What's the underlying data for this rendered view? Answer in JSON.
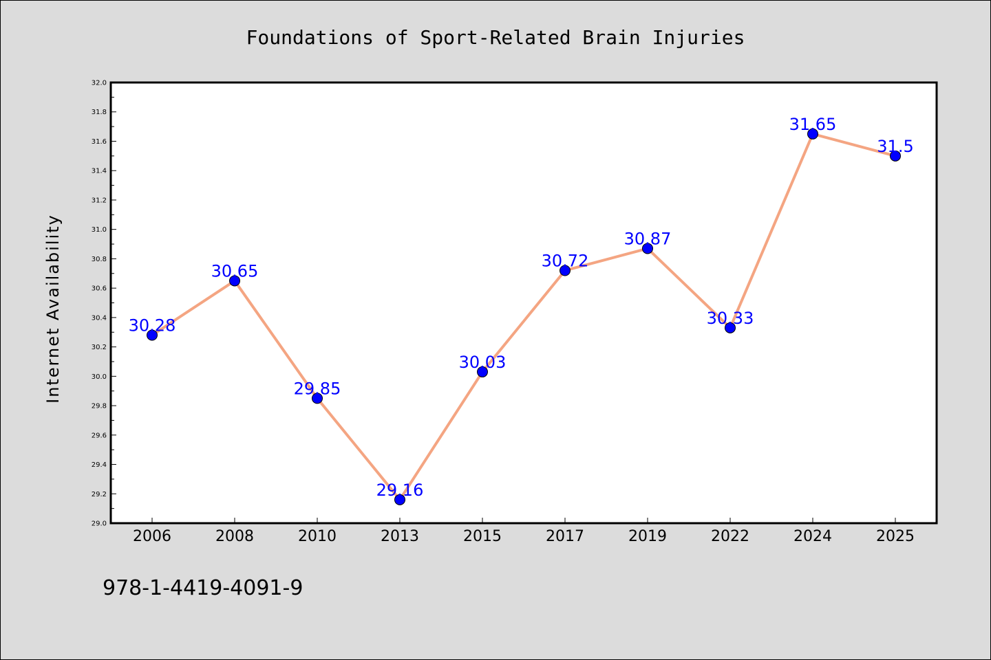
{
  "chart_data": {
    "type": "line",
    "title": "Foundations of Sport-Related Brain Injuries",
    "xlabel": "",
    "ylabel": "Internet Availability",
    "categories": [
      "2006",
      "2008",
      "2010",
      "2013",
      "2015",
      "2017",
      "2019",
      "2022",
      "2024",
      "2025"
    ],
    "series": [
      {
        "values": [
          30.28,
          30.65,
          29.85,
          29.16,
          30.03,
          30.72,
          30.87,
          30.33,
          31.65,
          31.5
        ],
        "labels": [
          "30.28",
          "30.65",
          "29.85",
          "29.16",
          "30.03",
          "30.72",
          "30.87",
          "30.33",
          "31.65",
          "31.5"
        ],
        "line_color": "#f4a582",
        "marker_color": "#0000ff",
        "label_color": "#0000ff"
      }
    ],
    "ylim": [
      29.0,
      32.0
    ],
    "yticks": [
      "29.0",
      "29.2",
      "29.4",
      "29.6",
      "29.8",
      "30.0",
      "30.2",
      "30.4",
      "30.6",
      "30.8",
      "31.0",
      "31.2",
      "31.4",
      "31.6",
      "31.8",
      "32.0"
    ],
    "grid": false,
    "legend": "none"
  },
  "footer": {
    "isbn": "978-1-4419-4091-9"
  },
  "colors": {
    "figure_background": "#dcdcdc",
    "plot_background": "#ffffff"
  }
}
